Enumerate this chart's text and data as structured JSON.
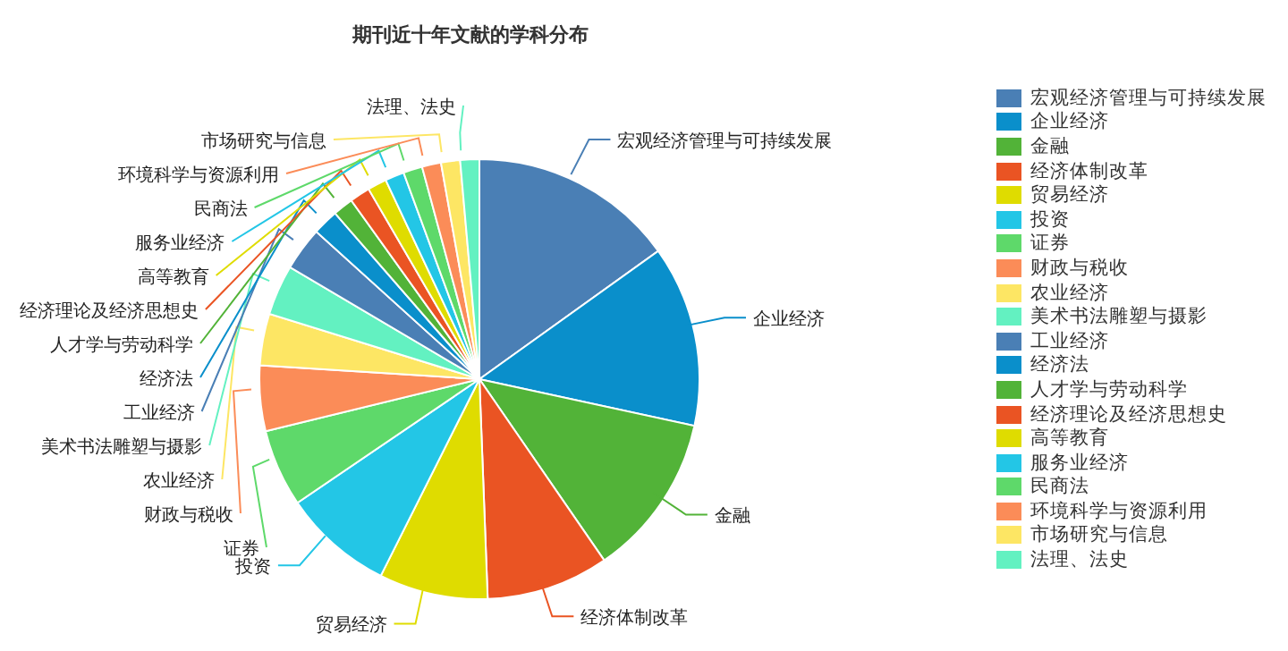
{
  "chart_data": {
    "type": "pie",
    "title": "期刊近十年文献的学科分布",
    "categories": [
      "宏观经济管理与可持续发展",
      "企业经济",
      "金融",
      "经济体制改革",
      "贸易经济",
      "投资",
      "证券",
      "财政与税收",
      "农业经济",
      "美术书法雕塑与摄影",
      "工业经济",
      "经济法",
      "人才学与劳动科学",
      "经济理论及经济思想史",
      "高等教育",
      "服务业经济",
      "民商法",
      "环境科学与资源利用",
      "市场研究与信息",
      "法理、法史"
    ],
    "values": [
      15.1,
      13.3,
      12.0,
      9.0,
      8.0,
      8.1,
      5.7,
      4.8,
      3.8,
      3.7,
      3.2,
      1.9,
      1.5,
      1.5,
      1.4,
      1.4,
      1.4,
      1.4,
      1.4,
      1.4
    ],
    "colors": [
      "#4a7fb5",
      "#0a8fcb",
      "#52b338",
      "#ea5423",
      "#dfdc00",
      "#23c6e6",
      "#5ed96a",
      "#fb8c58",
      "#fde664",
      "#63f1c1",
      "#4a7fb5",
      "#0a8fcb",
      "#52b338",
      "#ea5423",
      "#dfdc00",
      "#23c6e6",
      "#5ed96a",
      "#fb8c58",
      "#fde664",
      "#63f1c1"
    ],
    "legend": "right"
  }
}
